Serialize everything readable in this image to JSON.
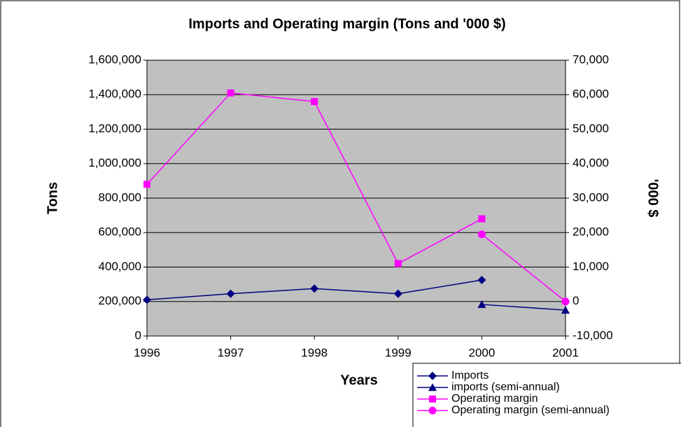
{
  "chart_data": {
    "type": "line",
    "title": "Imports and Operating margin (Tons and '000 $)",
    "x_label": "Years",
    "y_label": "Tons",
    "y2_label": "'000 $",
    "x": [
      1996,
      1997,
      1998,
      1999,
      2000,
      2001
    ],
    "xlim": [
      1996,
      2001
    ],
    "xticks": [
      1996,
      1997,
      1998,
      1999,
      2000,
      2001
    ],
    "ylim": [
      0,
      1600000
    ],
    "yticks": [
      0,
      {
        "value": 200000,
        "label": "200,000"
      },
      {
        "value": 400000,
        "label": "400,000"
      },
      {
        "value": 600000,
        "label": "600,000"
      },
      {
        "value": 800000,
        "label": "800,000"
      },
      {
        "value": 1000000,
        "label": "1,000,000"
      },
      {
        "value": 1200000,
        "label": "1,200,000"
      },
      {
        "value": 1400000,
        "label": "1,400,000"
      },
      {
        "value": 1600000,
        "label": "1,600,000"
      }
    ],
    "y2lim": [
      -10000,
      70000
    ],
    "y2ticks": [
      {
        "value": -10000,
        "label": "-10,000"
      },
      0,
      {
        "value": 10000,
        "label": "10,000"
      },
      {
        "value": 20000,
        "label": "20,000"
      },
      {
        "value": 30000,
        "label": "30,000"
      },
      {
        "value": 40000,
        "label": "40,000"
      },
      {
        "value": 50000,
        "label": "50,000"
      },
      {
        "value": 60000,
        "label": "60,000"
      },
      {
        "value": 70000,
        "label": "70,000"
      }
    ],
    "grid": true,
    "plot_background": "#c0c0c0",
    "legend_position": "bottom-right",
    "series": [
      {
        "name": "Imports",
        "color": "#000080",
        "marker": "diamond",
        "axis": "y",
        "values": [
          210000,
          245000,
          275000,
          245000,
          325000,
          null
        ]
      },
      {
        "name": "imports (semi-annual)",
        "color": "#000080",
        "marker": "triangle",
        "axis": "y",
        "values": [
          null,
          null,
          null,
          null,
          183000,
          150000
        ]
      },
      {
        "name": "Operating margin",
        "color": "#ff00ff",
        "marker": "square",
        "axis": "y2",
        "values": [
          34000,
          60500,
          58000,
          11000,
          24000,
          null
        ]
      },
      {
        "name": "Operating margin (semi-annual)",
        "color": "#ff00ff",
        "marker": "circle",
        "axis": "y2",
        "values": [
          null,
          null,
          null,
          null,
          19500,
          0
        ]
      }
    ]
  }
}
